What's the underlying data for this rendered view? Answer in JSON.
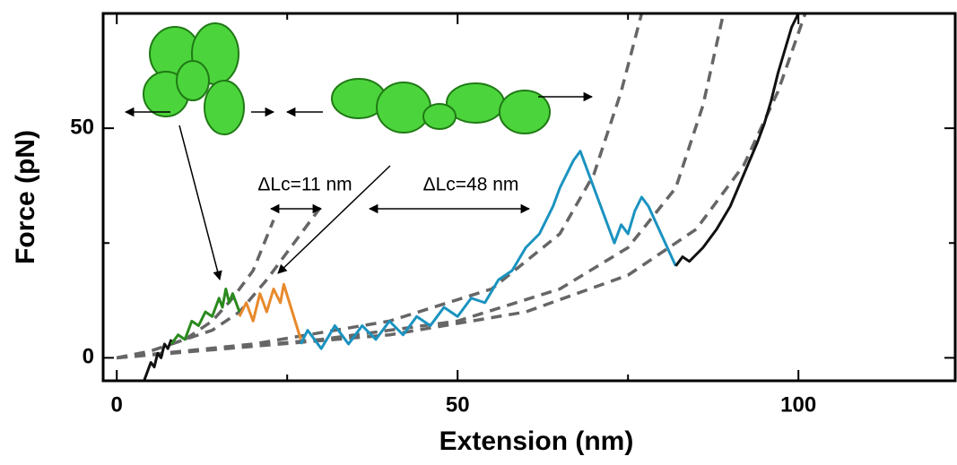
{
  "chart_data": {
    "type": "line",
    "xlabel": "Extension (nm)",
    "ylabel": "Force (pN)",
    "xlim": [
      -2,
      123
    ],
    "ylim": [
      -5,
      75
    ],
    "xticks": [
      0,
      50,
      100
    ],
    "yticks": [
      0,
      50
    ],
    "xminorticks": [
      25,
      75
    ],
    "yminorticks": [
      25
    ],
    "annotations": [
      "ΔLc=11 nm",
      "ΔLc=48 nm"
    ],
    "series": [
      {
        "color": "#666666",
        "dash": true,
        "x": [
          0,
          5,
          10,
          14,
          17,
          20,
          23
        ],
        "values": [
          0,
          1.5,
          4,
          8,
          13,
          19,
          30
        ]
      },
      {
        "color": "#666666",
        "dash": true,
        "x": [
          8,
          14,
          18,
          22,
          26,
          30
        ],
        "values": [
          3,
          6,
          10,
          17,
          25,
          33
        ]
      },
      {
        "color": "#666666",
        "dash": true,
        "x": [
          0,
          20,
          40,
          55,
          65,
          70,
          74,
          77
        ],
        "values": [
          0,
          3,
          8,
          15,
          27,
          40,
          58,
          75
        ]
      },
      {
        "color": "#666666",
        "dash": true,
        "x": [
          0,
          30,
          50,
          65,
          75,
          82,
          86,
          89
        ],
        "values": [
          0,
          4,
          8,
          15,
          24,
          37,
          55,
          75
        ]
      },
      {
        "color": "#666666",
        "dash": true,
        "x": [
          0,
          40,
          60,
          75,
          85,
          92,
          97,
          101
        ],
        "values": [
          0,
          5,
          10,
          18,
          28,
          42,
          58,
          75
        ]
      },
      {
        "color": "#111111",
        "dash": false,
        "x": [
          4,
          4.5,
          5,
          5.5,
          6,
          6.5,
          7,
          7.5,
          8
        ],
        "values": [
          -5,
          -3,
          -1,
          -2,
          1,
          0,
          3,
          2,
          4
        ]
      },
      {
        "color": "#2a8a1e",
        "dash": false,
        "x": [
          8,
          9,
          10,
          11,
          12,
          13,
          14,
          15,
          15.5,
          16,
          16.5,
          17,
          18
        ],
        "values": [
          3,
          5,
          4,
          8,
          7,
          10,
          9,
          13,
          11,
          15,
          12,
          14,
          10
        ]
      },
      {
        "color": "#e8892b",
        "dash": false,
        "x": [
          18,
          19,
          20,
          21,
          22,
          23,
          24,
          24.5,
          27
        ],
        "values": [
          9,
          12,
          8,
          14,
          10,
          15,
          12,
          16,
          4
        ]
      },
      {
        "color": "#1a93c0",
        "dash": false,
        "x": [
          27,
          28,
          30,
          32,
          34,
          36,
          38,
          40,
          42,
          44,
          46,
          48,
          50,
          52,
          54,
          56,
          58,
          60,
          62,
          64,
          65,
          66,
          67,
          68,
          69,
          73,
          74,
          75,
          76,
          77,
          78,
          82
        ],
        "values": [
          3,
          6,
          2,
          7,
          3,
          7,
          4,
          8,
          5,
          9,
          7,
          11,
          9,
          13,
          12,
          17,
          19,
          24,
          27,
          33,
          37,
          40,
          43,
          45,
          41,
          25,
          29,
          27,
          32,
          35,
          33,
          20
        ]
      },
      {
        "color": "#111111",
        "dash": false,
        "x": [
          82,
          83,
          84,
          86,
          88,
          90,
          92,
          94,
          95,
          96,
          97,
          98,
          99,
          100
        ],
        "values": [
          20,
          22,
          21,
          24,
          28,
          33,
          40,
          47,
          51,
          56,
          62,
          67,
          72,
          75
        ]
      }
    ]
  }
}
